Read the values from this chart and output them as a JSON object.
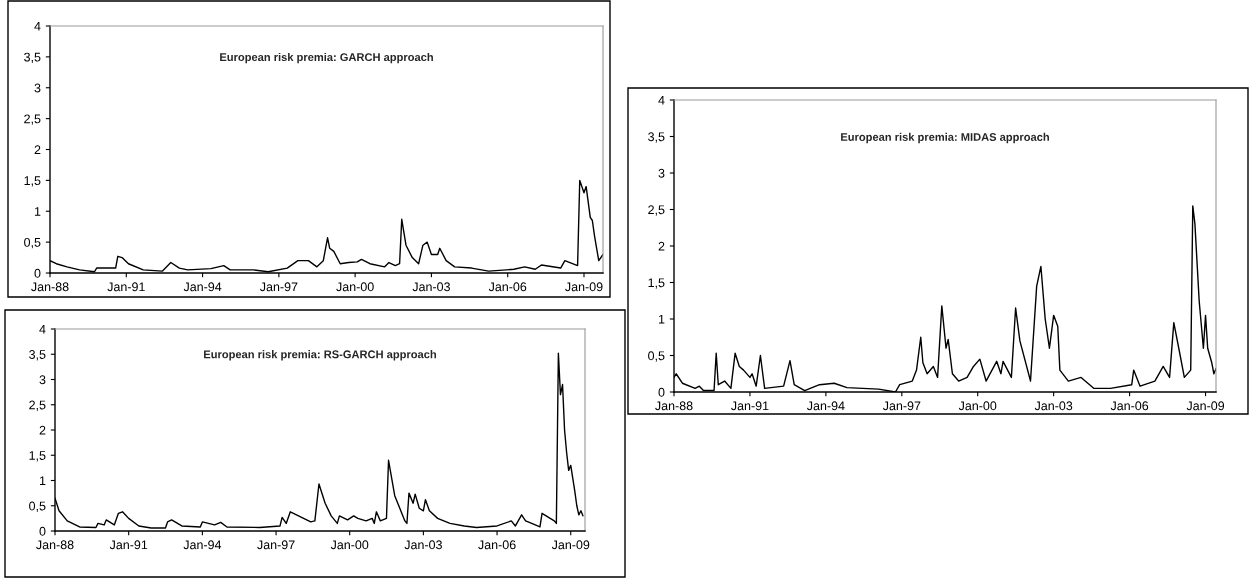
{
  "chart_data": [
    {
      "type": "line",
      "title": "European risk premia: GARCH approach",
      "grid": false,
      "legend": false,
      "marker": "none",
      "line_style": "solid",
      "xlim": [
        "1988-01",
        "2009-10"
      ],
      "ylim": [
        0,
        4
      ],
      "xticks": [
        {
          "value": "1988-01",
          "label": "Jan-88"
        },
        {
          "value": "1991-01",
          "label": "Jan-91"
        },
        {
          "value": "1994-01",
          "label": "Jan-94"
        },
        {
          "value": "1997-01",
          "label": "Jan-97"
        },
        {
          "value": "2000-01",
          "label": "Jan-00"
        },
        {
          "value": "2003-01",
          "label": "Jan-03"
        },
        {
          "value": "2006-01",
          "label": "Jan-06"
        },
        {
          "value": "2009-01",
          "label": "Jan-09"
        }
      ],
      "yticks": [
        0,
        {
          "value": 0.5,
          "label": "0,5"
        },
        1,
        {
          "value": 1.5,
          "label": "1,5"
        },
        2,
        {
          "value": 2.5,
          "label": "2,5"
        },
        3,
        {
          "value": 3.5,
          "label": "3,5"
        },
        4
      ],
      "series": [
        {
          "color": "#000000",
          "x": [
            "1988-01",
            "1988-04",
            "1988-09",
            "1989-03",
            "1989-10",
            "1989-11",
            "1990-08",
            "1990-09",
            "1990-11",
            "1991-02",
            "1991-09",
            "1992-06",
            "1992-10",
            "1993-02",
            "1993-06",
            "1994-05",
            "1994-11",
            "1995-02",
            "1996-01",
            "1996-08",
            "1997-05",
            "1997-10",
            "1998-03",
            "1998-07",
            "1998-10",
            "1998-12",
            "1999-01",
            "1999-03",
            "1999-06",
            "1999-10",
            "2000-02",
            "2000-04",
            "2000-08",
            "2001-03",
            "2001-05",
            "2001-08",
            "2001-10",
            "2001-11",
            "2002-01",
            "2002-04",
            "2002-07",
            "2002-09",
            "2002-11",
            "2003-01",
            "2003-04",
            "2003-05",
            "2003-08",
            "2003-12",
            "2004-08",
            "2005-04",
            "2006-04",
            "2006-09",
            "2007-02",
            "2007-05",
            "2008-02",
            "2008-04",
            "2008-10",
            "2008-11",
            "2009-01",
            "2009-02",
            "2009-04",
            "2009-05",
            "2009-06",
            "2009-08",
            "2009-10"
          ],
          "values": [
            0.2,
            0.15,
            0.1,
            0.05,
            0.02,
            0.08,
            0.08,
            0.27,
            0.25,
            0.15,
            0.05,
            0.03,
            0.17,
            0.08,
            0.05,
            0.07,
            0.12,
            0.05,
            0.05,
            0.02,
            0.08,
            0.2,
            0.2,
            0.1,
            0.2,
            0.57,
            0.4,
            0.35,
            0.15,
            0.17,
            0.18,
            0.22,
            0.15,
            0.1,
            0.17,
            0.12,
            0.15,
            0.87,
            0.45,
            0.25,
            0.15,
            0.45,
            0.5,
            0.3,
            0.3,
            0.4,
            0.2,
            0.1,
            0.08,
            0.03,
            0.06,
            0.1,
            0.06,
            0.13,
            0.08,
            0.2,
            0.12,
            1.5,
            1.3,
            1.4,
            0.9,
            0.85,
            0.6,
            0.2,
            0.3
          ]
        }
      ]
    },
    {
      "type": "line",
      "title": "European risk premia: RS-GARCH approach",
      "grid": false,
      "legend": false,
      "marker": "none",
      "line_style": "solid",
      "xlim": [
        "1988-01",
        "2009-08"
      ],
      "ylim": [
        0,
        4
      ],
      "xticks": [
        {
          "value": "1988-01",
          "label": "Jan-88"
        },
        {
          "value": "1991-01",
          "label": "Jan-91"
        },
        {
          "value": "1994-01",
          "label": "Jan-94"
        },
        {
          "value": "1997-01",
          "label": "Jan-97"
        },
        {
          "value": "2000-01",
          "label": "Jan-00"
        },
        {
          "value": "2003-01",
          "label": "Jan-03"
        },
        {
          "value": "2006-01",
          "label": "Jan-06"
        },
        {
          "value": "2009-01",
          "label": "Jan-09"
        }
      ],
      "yticks": [
        0,
        {
          "value": 0.5,
          "label": "0,5"
        },
        1,
        {
          "value": 1.5,
          "label": "1,5"
        },
        2,
        {
          "value": 2.5,
          "label": "2,5"
        },
        3,
        {
          "value": 3.5,
          "label": "3,5"
        },
        4
      ],
      "series": [
        {
          "color": "#000000",
          "x": [
            "1988-01",
            "1988-03",
            "1988-07",
            "1989-01",
            "1989-09",
            "1989-10",
            "1990-01",
            "1990-02",
            "1990-06",
            "1990-08",
            "1990-10",
            "1991-01",
            "1991-06",
            "1991-12",
            "1992-07",
            "1992-08",
            "1992-10",
            "1993-03",
            "1993-12",
            "1994-01",
            "1994-07",
            "1994-10",
            "1995-01",
            "1996-05",
            "1997-03",
            "1997-04",
            "1997-06",
            "1997-08",
            "1997-12",
            "1998-06",
            "1998-08",
            "1998-10",
            "1999-01",
            "1999-04",
            "1999-07",
            "1999-08",
            "1999-12",
            "2000-03",
            "2000-05",
            "2000-09",
            "2000-12",
            "2001-01",
            "2001-02",
            "2001-04",
            "2001-07",
            "2001-08",
            "2001-11",
            "2002-04",
            "2002-05",
            "2002-06",
            "2002-08",
            "2002-09",
            "2002-11",
            "2003-01",
            "2003-02",
            "2003-04",
            "2003-08",
            "2004-02",
            "2004-09",
            "2005-03",
            "2006-01",
            "2006-08",
            "2006-10",
            "2007-01",
            "2007-03",
            "2007-06",
            "2007-10",
            "2007-11",
            "2008-05",
            "2008-06",
            "2008-07",
            "2008-08",
            "2008-09",
            "2008-10",
            "2008-11",
            "2008-12",
            "2009-01",
            "2009-03",
            "2009-04",
            "2009-05",
            "2009-06",
            "2009-07"
          ],
          "values": [
            0.65,
            0.4,
            0.2,
            0.08,
            0.07,
            0.15,
            0.12,
            0.22,
            0.12,
            0.35,
            0.38,
            0.25,
            0.1,
            0.06,
            0.06,
            0.18,
            0.22,
            0.1,
            0.08,
            0.18,
            0.12,
            0.17,
            0.08,
            0.07,
            0.1,
            0.27,
            0.15,
            0.38,
            0.3,
            0.18,
            0.2,
            0.93,
            0.55,
            0.3,
            0.15,
            0.3,
            0.22,
            0.3,
            0.25,
            0.2,
            0.25,
            0.15,
            0.38,
            0.2,
            0.25,
            1.4,
            0.7,
            0.2,
            0.15,
            0.75,
            0.55,
            0.73,
            0.45,
            0.4,
            0.62,
            0.4,
            0.25,
            0.15,
            0.1,
            0.07,
            0.1,
            0.2,
            0.1,
            0.32,
            0.2,
            0.15,
            0.08,
            0.35,
            0.2,
            0.15,
            3.52,
            2.7,
            2.9,
            2.0,
            1.55,
            1.2,
            1.3,
            0.8,
            0.5,
            0.32,
            0.4,
            0.3
          ]
        }
      ]
    },
    {
      "type": "line",
      "title": "European risk premia: MIDAS approach",
      "grid": false,
      "legend": false,
      "marker": "none",
      "line_style": "solid",
      "xlim": [
        "1988-01",
        "2009-06"
      ],
      "ylim": [
        0,
        4
      ],
      "xticks": [
        {
          "value": "1988-01",
          "label": "Jan-88"
        },
        {
          "value": "1991-01",
          "label": "Jan-91"
        },
        {
          "value": "1994-01",
          "label": "Jan-94"
        },
        {
          "value": "1997-01",
          "label": "Jan-97"
        },
        {
          "value": "2000-01",
          "label": "Jan-00"
        },
        {
          "value": "2003-01",
          "label": "Jan-03"
        },
        {
          "value": "2006-01",
          "label": "Jan-06"
        },
        {
          "value": "2009-01",
          "label": "Jan-09"
        }
      ],
      "yticks": [
        0,
        {
          "value": 0.5,
          "label": "0,5"
        },
        1,
        {
          "value": 1.5,
          "label": "1,5"
        },
        2,
        {
          "value": 2.5,
          "label": "2,5"
        },
        3,
        {
          "value": 3.5,
          "label": "3,5"
        },
        4
      ],
      "series": [
        {
          "color": "#000000",
          "x": [
            "1988-01",
            "1988-02",
            "1988-05",
            "1988-11",
            "1989-01",
            "1989-03",
            "1989-08",
            "1989-09",
            "1989-10",
            "1990-01",
            "1990-04",
            "1990-06",
            "1990-08",
            "1990-10",
            "1991-01",
            "1991-02",
            "1991-04",
            "1991-06",
            "1991-08",
            "1992-05",
            "1992-08",
            "1992-10",
            "1993-03",
            "1993-10",
            "1994-05",
            "1994-11",
            "1996-02",
            "1996-10",
            "1996-12",
            "1997-06",
            "1997-08",
            "1997-10",
            "1997-11",
            "1998-01",
            "1998-04",
            "1998-06",
            "1998-08",
            "1998-10",
            "1998-11",
            "1999-01",
            "1999-04",
            "1999-08",
            "1999-11",
            "2000-02",
            "2000-05",
            "2000-10",
            "2000-12",
            "2001-01",
            "2001-05",
            "2001-07",
            "2001-09",
            "2002-02",
            "2002-05",
            "2002-07",
            "2002-09",
            "2002-11",
            "2003-01",
            "2003-03",
            "2003-04",
            "2003-08",
            "2004-02",
            "2004-08",
            "2005-04",
            "2006-02",
            "2006-03",
            "2006-06",
            "2007-01",
            "2007-05",
            "2007-08",
            "2007-10",
            "2008-01",
            "2008-03",
            "2008-06",
            "2008-07",
            "2008-08",
            "2008-10",
            "2008-12",
            "2009-01",
            "2009-02",
            "2009-04",
            "2009-05",
            "2009-06"
          ],
          "values": [
            0.2,
            0.25,
            0.12,
            0.05,
            0.08,
            0.02,
            0.02,
            0.53,
            0.1,
            0.15,
            0.05,
            0.53,
            0.35,
            0.3,
            0.2,
            0.25,
            0.08,
            0.5,
            0.05,
            0.08,
            0.43,
            0.1,
            0.02,
            0.1,
            0.12,
            0.06,
            0.04,
            0.0,
            0.1,
            0.15,
            0.3,
            0.75,
            0.4,
            0.25,
            0.35,
            0.2,
            1.18,
            0.6,
            0.72,
            0.25,
            0.15,
            0.2,
            0.35,
            0.45,
            0.15,
            0.42,
            0.25,
            0.42,
            0.2,
            1.15,
            0.7,
            0.15,
            1.45,
            1.72,
            1.0,
            0.6,
            1.05,
            0.9,
            0.3,
            0.15,
            0.2,
            0.05,
            0.05,
            0.1,
            0.3,
            0.08,
            0.15,
            0.35,
            0.2,
            0.95,
            0.5,
            0.2,
            0.3,
            2.55,
            2.3,
            1.25,
            0.6,
            1.05,
            0.6,
            0.4,
            0.25,
            0.32
          ]
        }
      ]
    }
  ]
}
